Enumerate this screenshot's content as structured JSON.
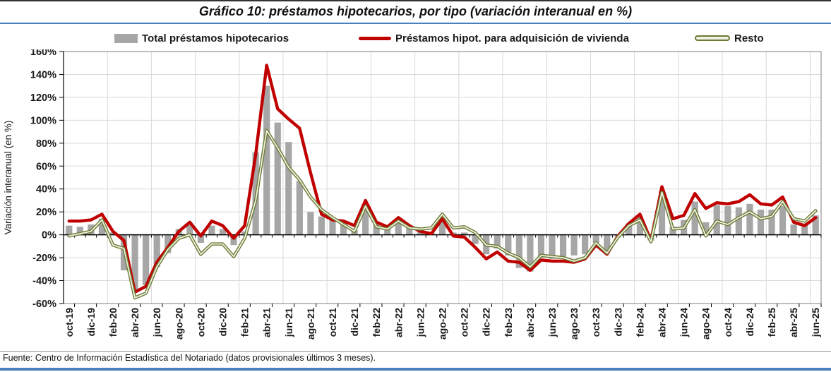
{
  "page": {
    "source_note": "Fuente: Centro de Información Estadística del Notariado (datos provisionales últimos 3 meses)."
  },
  "chart_data": {
    "type": "bar",
    "subtype": "bar-plus-lines",
    "title": "Gráfico 10: préstamos hipotecarios, por tipo (variación interanual en %)",
    "xlabel": "",
    "ylabel": "Variación interanual (en %)",
    "ylim": [
      -60,
      160
    ],
    "y_tick_step": 20,
    "y_tick_suffix": "%",
    "grid": true,
    "legend_position": "top",
    "x_tick_labels": [
      "oct-19",
      "feb-20",
      "jun-20",
      "oct-20",
      "feb-21",
      "jun-21",
      "oct-21",
      "feb-22",
      "jun-22",
      "oct-22",
      "feb-23",
      "jun-23",
      "oct-23",
      "feb-24",
      "jun-24",
      "oct-24",
      "feb-25",
      "jun-25"
    ],
    "categories": [
      "oct-19",
      "nov-19",
      "dic-19",
      "ene-20",
      "feb-20",
      "mar-20",
      "abr-20",
      "may-20",
      "jun-20",
      "jul-20",
      "ago-20",
      "sep-20",
      "oct-20",
      "nov-20",
      "dic-20",
      "ene-21",
      "feb-21",
      "mar-21",
      "abr-21",
      "may-21",
      "jun-21",
      "jul-21",
      "ago-21",
      "sep-21",
      "oct-21",
      "nov-21",
      "dic-21",
      "ene-22",
      "feb-22",
      "mar-22",
      "abr-22",
      "may-22",
      "jun-22",
      "jul-22",
      "ago-22",
      "sep-22",
      "oct-22",
      "nov-22",
      "dic-22",
      "ene-23",
      "feb-23",
      "mar-23",
      "abr-23",
      "may-23",
      "jun-23",
      "jul-23",
      "ago-23",
      "sep-23",
      "oct-23",
      "nov-23",
      "dic-23",
      "ene-24",
      "feb-24",
      "mar-24",
      "abr-24",
      "may-24",
      "jun-24",
      "jul-24",
      "ago-24",
      "sep-24",
      "oct-24",
      "nov-24",
      "dic-24",
      "ene-25",
      "feb-25",
      "mar-25",
      "abr-25",
      "may-25",
      "jun-25"
    ],
    "series": [
      {
        "name": "Total préstamos hipotecarios",
        "type": "bar",
        "color": "#A6A6A6",
        "values": [
          8,
          7,
          9,
          14,
          2,
          -31,
          -48,
          -44,
          -28,
          -16,
          5,
          9,
          -7,
          8,
          5,
          -9,
          3,
          72,
          130,
          98,
          81,
          47,
          20,
          16,
          13,
          10,
          4,
          23,
          10,
          6,
          13,
          7,
          3,
          2,
          12,
          2,
          2,
          -8,
          -17,
          -12,
          -18,
          -29,
          -32,
          -20,
          -21,
          -20,
          -18,
          -17,
          -7,
          -15,
          -2,
          10,
          16,
          -5,
          38,
          7,
          13,
          29,
          11,
          26,
          25,
          24,
          27,
          22,
          22,
          25,
          9,
          10,
          17
        ]
      },
      {
        "name": "Préstamos hipot. para adquisición de vivienda",
        "type": "line",
        "color": "#C00000",
        "values": [
          12,
          12,
          13,
          18,
          3,
          -5,
          -50,
          -45,
          -24,
          -11,
          3,
          11,
          -1,
          12,
          8,
          -3,
          8,
          70,
          148,
          110,
          101,
          93,
          54,
          18,
          13,
          12,
          8,
          30,
          11,
          7,
          15,
          8,
          3,
          1,
          14,
          -1,
          -2,
          -11,
          -21,
          -15,
          -23,
          -24,
          -31,
          -22,
          -23,
          -23,
          -24,
          -21,
          -9,
          -17,
          -1,
          10,
          18,
          -5,
          42,
          14,
          17,
          36,
          23,
          28,
          27,
          29,
          35,
          27,
          26,
          33,
          11,
          8,
          15
        ]
      },
      {
        "name": "Resto",
        "type": "line",
        "color": "#6B7B34",
        "line_inner_color": "#EFF1E3",
        "values": [
          -1,
          1,
          3,
          13,
          -9,
          -12,
          -55,
          -51,
          -28,
          -13,
          -3,
          0,
          -17,
          -8,
          -8,
          -19,
          -3,
          30,
          91,
          76,
          59,
          48,
          33,
          22,
          15,
          9,
          3,
          25,
          7,
          5,
          12,
          6,
          5,
          6,
          18,
          6,
          7,
          2,
          -9,
          -10,
          -16,
          -20,
          -28,
          -18,
          -19,
          -20,
          -23,
          -20,
          -7,
          -16,
          -2,
          8,
          13,
          -6,
          37,
          5,
          6,
          22,
          -1,
          12,
          9,
          15,
          20,
          14,
          16,
          29,
          14,
          12,
          21
        ]
      }
    ]
  },
  "style": {
    "grid_color": "#D9D9D9",
    "frame_color": "#7F7F7F",
    "axis_color": "#000000",
    "accent_blue": "#4A7EBD",
    "text_color": "#1a1a1a"
  }
}
